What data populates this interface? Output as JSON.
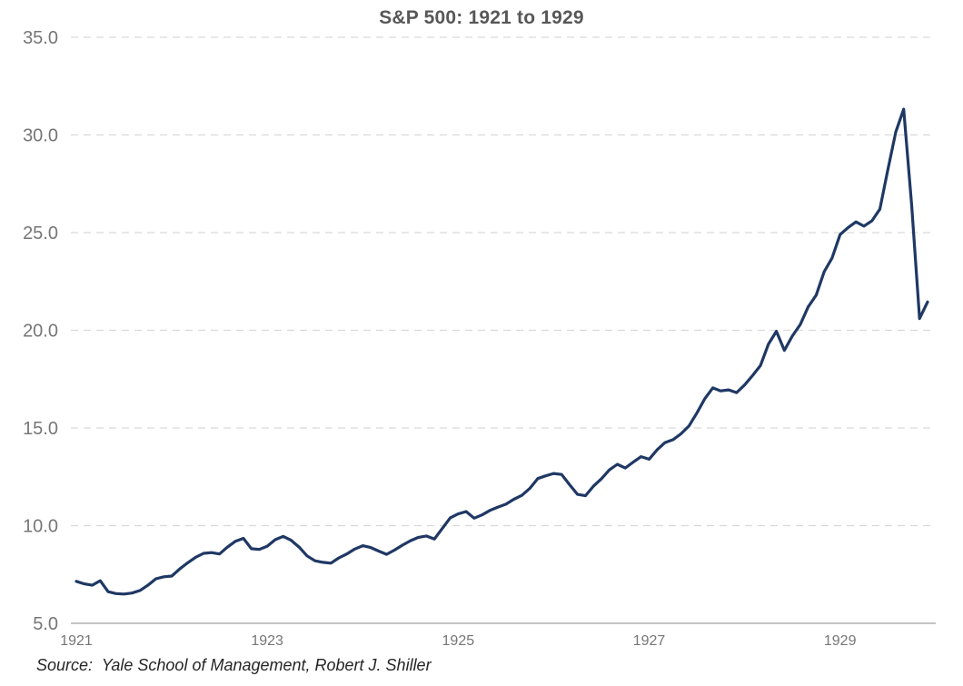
{
  "chart_data": {
    "type": "line",
    "title": "S&P 500: 1921 to 1929",
    "source_note": "Source:  Yale School of Management, Robert J. Shiller",
    "x_axis": {
      "start": "1921-01",
      "end": "1929-12",
      "frequency": "monthly",
      "tick_labels": [
        "1921",
        "1923",
        "1925",
        "1927",
        "1929"
      ],
      "tick_month_indices": [
        0,
        24,
        48,
        72,
        96
      ]
    },
    "y_axis": {
      "min": 5.0,
      "max": 35.0,
      "tick_step": 5.0,
      "tick_labels": [
        "5.0",
        "10.0",
        "15.0",
        "20.0",
        "25.0",
        "30.0",
        "35.0"
      ]
    },
    "grid": {
      "horizontal": "dashed",
      "vertical": "none"
    },
    "legend": "none",
    "series": [
      {
        "name": "S&P 500",
        "color": "#1f3864",
        "values": [
          7.15,
          7.02,
          6.95,
          7.18,
          6.62,
          6.52,
          6.5,
          6.55,
          6.68,
          6.95,
          7.28,
          7.38,
          7.42,
          7.78,
          8.1,
          8.38,
          8.58,
          8.62,
          8.55,
          8.9,
          9.2,
          9.35,
          8.82,
          8.78,
          8.95,
          9.28,
          9.45,
          9.25,
          8.9,
          8.45,
          8.2,
          8.12,
          8.08,
          8.35,
          8.55,
          8.8,
          8.97,
          8.88,
          8.7,
          8.53,
          8.75,
          9.0,
          9.23,
          9.4,
          9.47,
          9.31,
          9.85,
          10.4,
          10.6,
          10.72,
          10.38,
          10.55,
          10.78,
          10.95,
          11.1,
          11.35,
          11.55,
          11.9,
          12.41,
          12.55,
          12.67,
          12.62,
          12.1,
          11.6,
          11.53,
          12.02,
          12.4,
          12.85,
          13.14,
          12.95,
          13.25,
          13.53,
          13.4,
          13.88,
          14.25,
          14.4,
          14.7,
          15.1,
          15.76,
          16.5,
          17.05,
          16.9,
          16.95,
          16.81,
          17.2,
          17.68,
          18.2,
          19.3,
          19.95,
          18.97,
          19.7,
          20.3,
          21.2,
          21.8,
          23.0,
          23.7,
          24.9,
          25.25,
          25.55,
          25.33,
          25.6,
          26.2,
          28.2,
          30.15,
          31.32,
          26.4,
          20.6,
          21.45
        ]
      }
    ]
  },
  "style": {
    "background": "#ffffff",
    "title_color": "#575757",
    "axis_label_color": "#767676",
    "gridline_color": "#d9d9d9",
    "axis_line_color": "#c4c4c4",
    "line_color": "#1f3864",
    "source_color": "#262626"
  }
}
